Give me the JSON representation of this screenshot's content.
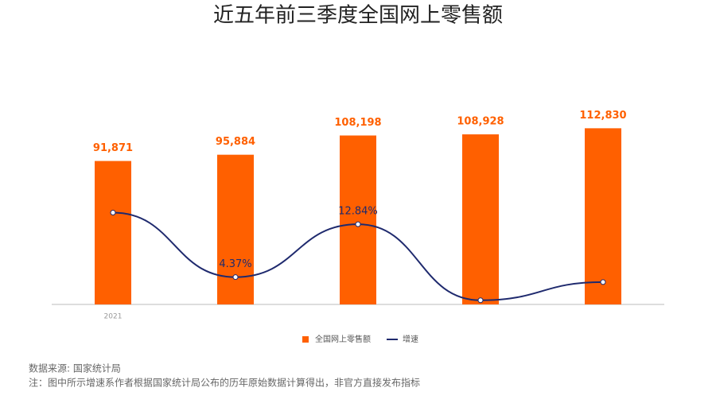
{
  "chart_data": {
    "type": "bar-line",
    "title": "近五年前三季度全国网上零售额",
    "categories": [
      "2021",
      null,
      null,
      null,
      null
    ],
    "series": [
      {
        "name": "全国网上零售额",
        "type": "bar",
        "color": "#ff6000",
        "values": [
          91871,
          95884,
          108198,
          108928,
          112830
        ],
        "value_labels": [
          "91,871",
          "95,884",
          "108,198",
          "108,928",
          "112,830"
        ]
      },
      {
        "name": "增速",
        "type": "line",
        "axis": "y2",
        "color": "#1f2a6e",
        "values": [
          14.7,
          4.37,
          12.84,
          0.67,
          3.58
        ],
        "value_labels": [
          null,
          "4.37%",
          "12.84%",
          null,
          null
        ]
      }
    ],
    "ylim": [
      0,
      140000
    ],
    "y2lim": [
      0,
      35
    ],
    "source": "数据来源: 国家统计局",
    "note": "注：图中所示增速系作者根据国家统计局公布的历年原始数据计算得出，非官方直接发布指标"
  }
}
